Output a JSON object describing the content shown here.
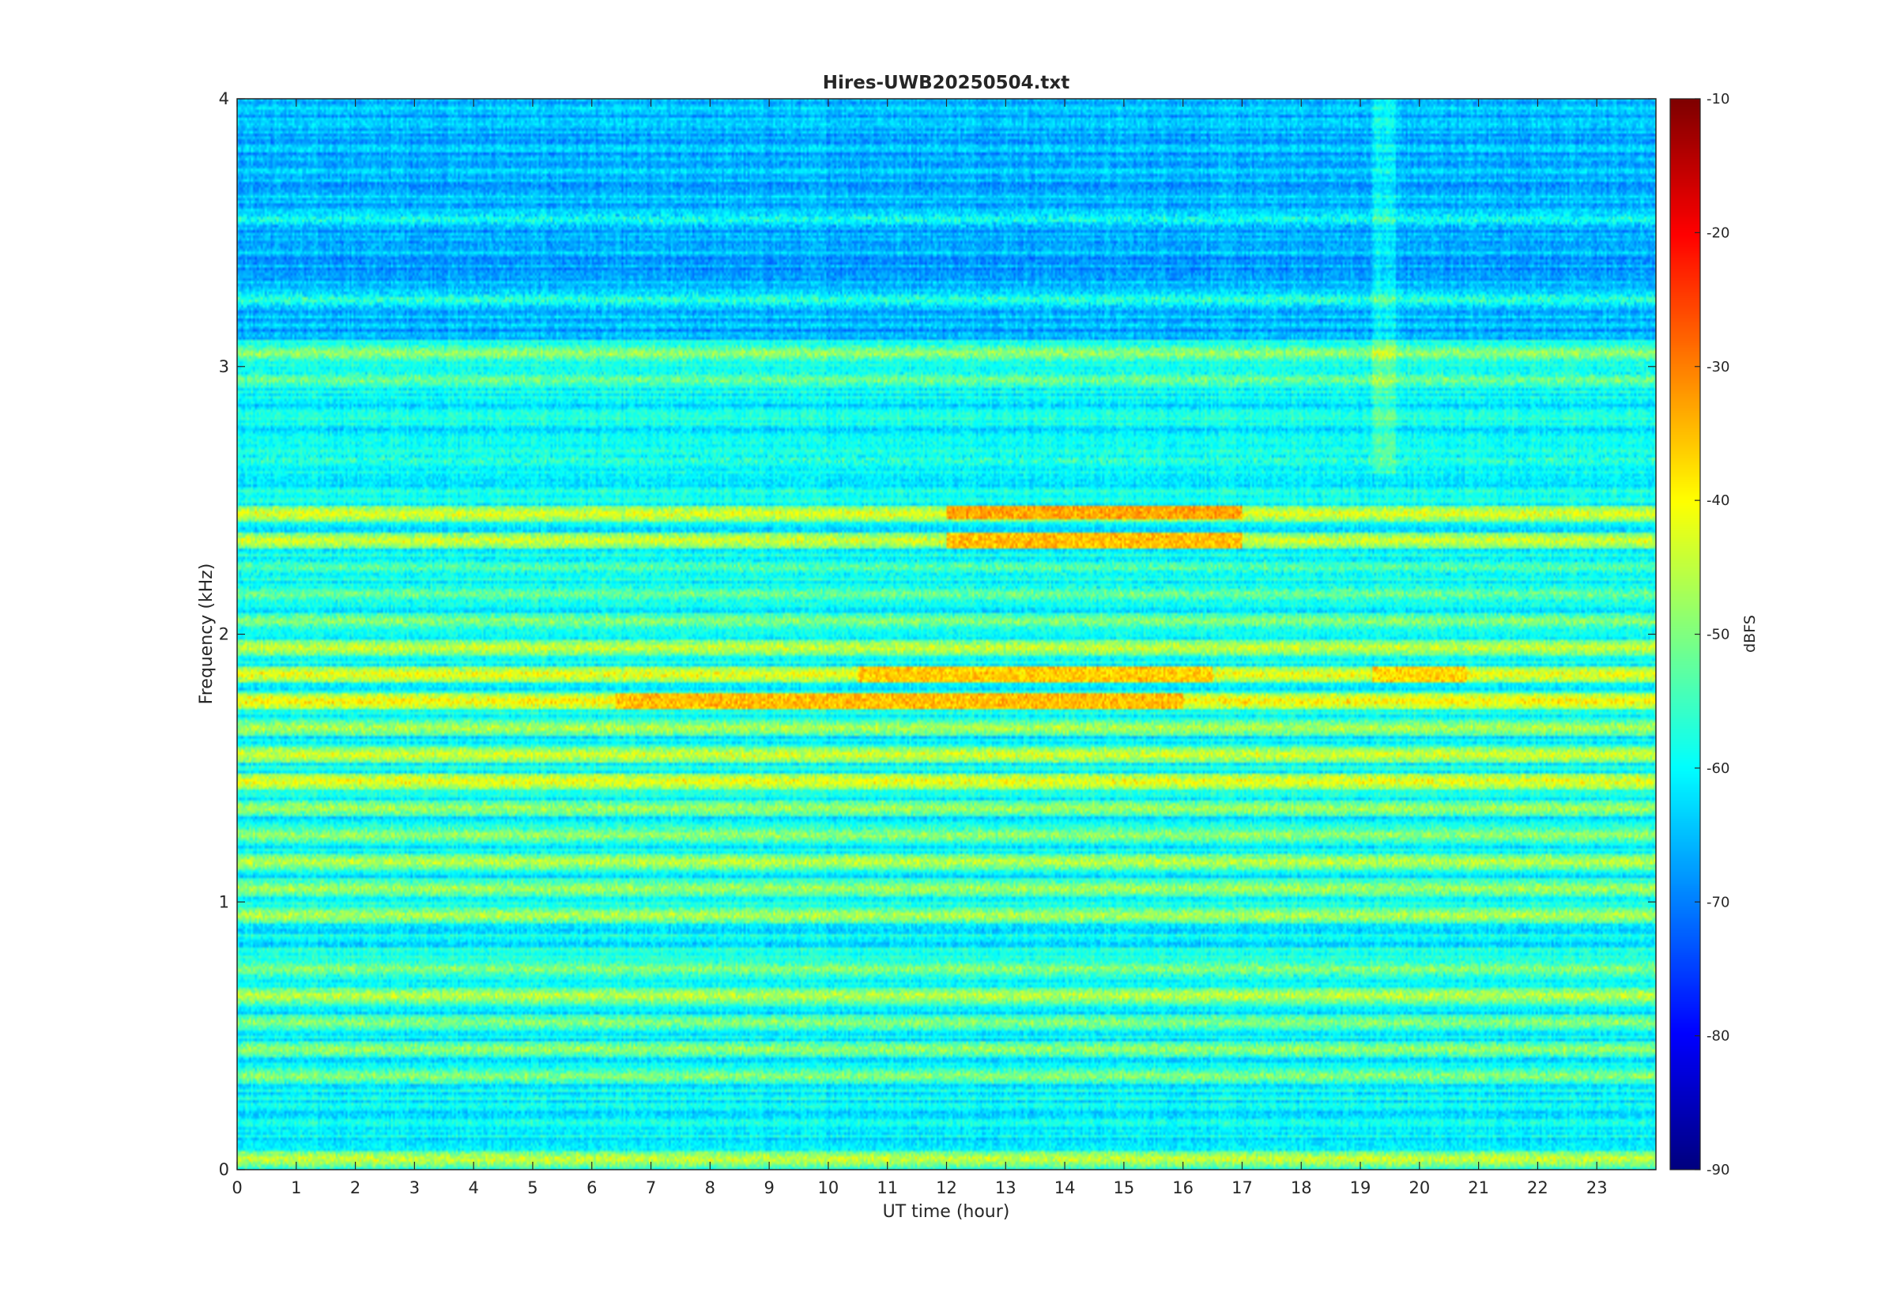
{
  "chart_data": {
    "type": "heatmap",
    "title": "Hires-UWB20250504.txt",
    "xlabel": "UT time (hour)",
    "ylabel": "Frequency (kHz)",
    "xlim": [
      0,
      24
    ],
    "ylim": [
      0,
      4
    ],
    "x_ticks": [
      "0",
      "1",
      "2",
      "3",
      "4",
      "5",
      "6",
      "7",
      "8",
      "9",
      "10",
      "11",
      "12",
      "13",
      "14",
      "15",
      "16",
      "17",
      "18",
      "19",
      "20",
      "21",
      "22",
      "23"
    ],
    "y_ticks": [
      "0",
      "1",
      "2",
      "3",
      "4"
    ],
    "colorbar": {
      "label": "dBFS",
      "range": [
        -90,
        -10
      ],
      "ticks": [
        "-10",
        "-20",
        "-30",
        "-40",
        "-50",
        "-60",
        "-70",
        "-80",
        "-90"
      ],
      "colormap": "jet"
    },
    "background_level_dbfs": -60,
    "bands": [
      {
        "freq_khz": 0.04,
        "level_dbfs": -43
      },
      {
        "freq_khz": 0.35,
        "level_dbfs": -48
      },
      {
        "freq_khz": 0.45,
        "level_dbfs": -47
      },
      {
        "freq_khz": 0.55,
        "level_dbfs": -48
      },
      {
        "freq_khz": 0.65,
        "level_dbfs": -44
      },
      {
        "freq_khz": 0.75,
        "level_dbfs": -48
      },
      {
        "freq_khz": 0.95,
        "level_dbfs": -45
      },
      {
        "freq_khz": 1.05,
        "level_dbfs": -46
      },
      {
        "freq_khz": 1.15,
        "level_dbfs": -44
      },
      {
        "freq_khz": 1.25,
        "level_dbfs": -47
      },
      {
        "freq_khz": 1.35,
        "level_dbfs": -46
      },
      {
        "freq_khz": 1.45,
        "level_dbfs": -40
      },
      {
        "freq_khz": 1.55,
        "level_dbfs": -42
      },
      {
        "freq_khz": 1.65,
        "level_dbfs": -45
      },
      {
        "freq_khz": 1.75,
        "level_dbfs": -38
      },
      {
        "freq_khz": 1.85,
        "level_dbfs": -40
      },
      {
        "freq_khz": 1.95,
        "level_dbfs": -43
      },
      {
        "freq_khz": 2.05,
        "level_dbfs": -48
      },
      {
        "freq_khz": 2.15,
        "level_dbfs": -50
      },
      {
        "freq_khz": 2.25,
        "level_dbfs": -52
      },
      {
        "freq_khz": 2.35,
        "level_dbfs": -42
      },
      {
        "freq_khz": 2.45,
        "level_dbfs": -41
      },
      {
        "freq_khz": 2.65,
        "level_dbfs": -55
      },
      {
        "freq_khz": 2.95,
        "level_dbfs": -50
      },
      {
        "freq_khz": 3.05,
        "level_dbfs": -47
      },
      {
        "freq_khz": 3.25,
        "level_dbfs": -55
      },
      {
        "freq_khz": 3.55,
        "level_dbfs": -57
      }
    ],
    "intense_regions": [
      {
        "t_start_hour": 12,
        "t_end_hour": 17,
        "freq_khz": 2.45,
        "level_dbfs": -33
      },
      {
        "t_start_hour": 12,
        "t_end_hour": 17,
        "freq_khz": 2.35,
        "level_dbfs": -35
      },
      {
        "t_start_hour": 6.4,
        "t_end_hour": 16,
        "freq_khz": 1.75,
        "level_dbfs": -35
      },
      {
        "t_start_hour": 10.5,
        "t_end_hour": 16.5,
        "freq_khz": 1.85,
        "level_dbfs": -36
      },
      {
        "t_start_hour": 19.2,
        "t_end_hour": 20.8,
        "freq_khz": 1.85,
        "level_dbfs": -37
      }
    ]
  }
}
